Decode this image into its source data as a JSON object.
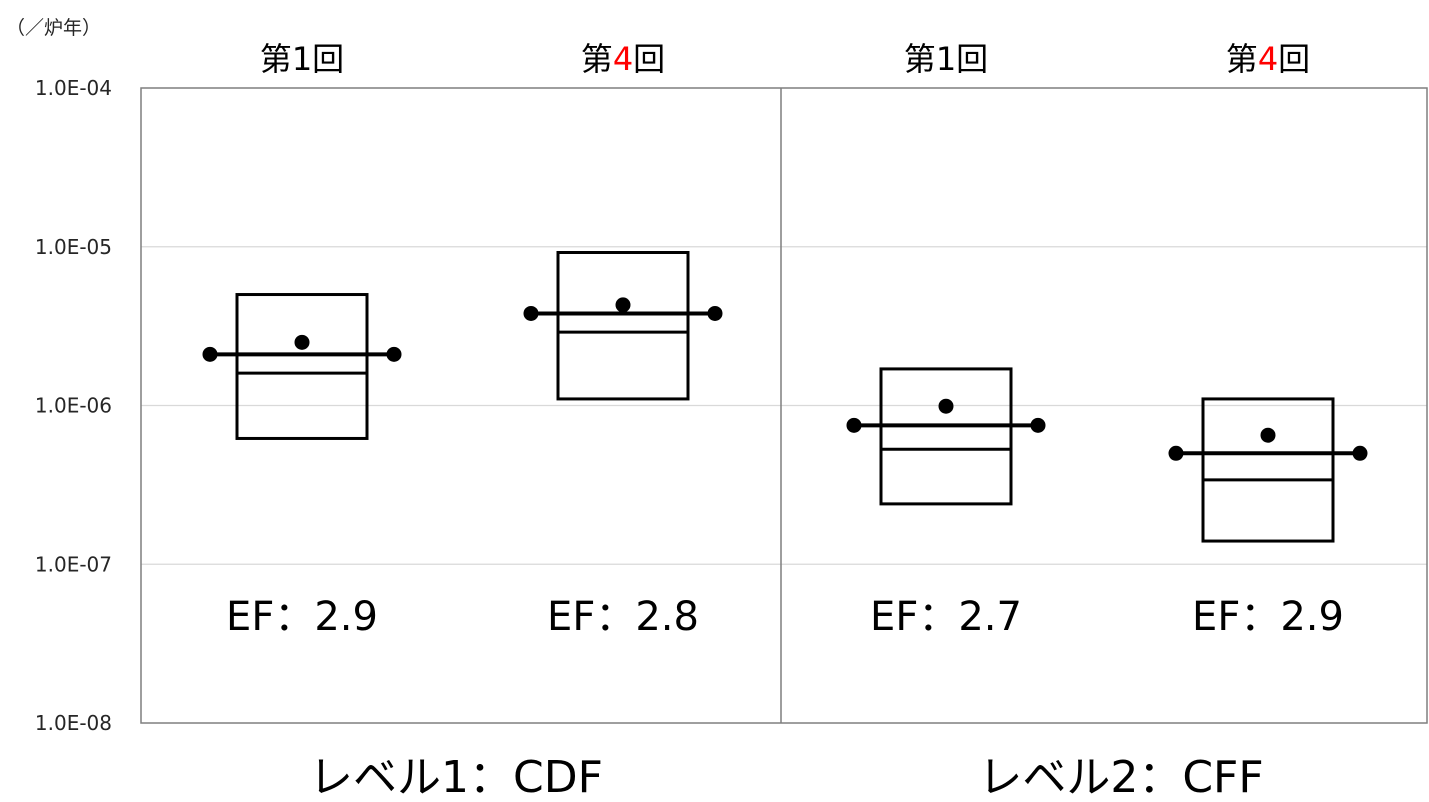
{
  "chart_data": {
    "type": "box",
    "y_unit_label": "（／炉年）",
    "y_scale": "log",
    "ylim": [
      1e-08,
      0.0001
    ],
    "y_ticks": [
      "1.0E-04",
      "1.0E-05",
      "1.0E-06",
      "1.0E-07",
      "1.0E-08"
    ],
    "grid": true,
    "groups": [
      {
        "label": "レベル1：CDF",
        "items": [
          {
            "round_prefix": "第",
            "round_number": "1",
            "round_suffix": "回",
            "highlight": false,
            "p95": 5e-06,
            "mean": 2.5e-06,
            "point_estimate": 2.1e-06,
            "median": 1.6e-06,
            "p05": 6.2e-07,
            "ef_label": "EF：2.9"
          },
          {
            "round_prefix": "第",
            "round_number": "4",
            "round_suffix": "回",
            "highlight": true,
            "p95": 9.2e-06,
            "mean": 4.3e-06,
            "point_estimate": 3.8e-06,
            "median": 2.9e-06,
            "p05": 1.1e-06,
            "ef_label": "EF：2.8"
          }
        ]
      },
      {
        "label": "レベル2：CFF",
        "items": [
          {
            "round_prefix": "第",
            "round_number": "1",
            "round_suffix": "回",
            "highlight": false,
            "p95": 1.7e-06,
            "mean": 9.9e-07,
            "point_estimate": 7.5e-07,
            "median": 5.3e-07,
            "p05": 2.4e-07,
            "ef_label": "EF：2.7"
          },
          {
            "round_prefix": "第",
            "round_number": "4",
            "round_suffix": "回",
            "highlight": true,
            "p95": 1.1e-06,
            "mean": 6.5e-07,
            "point_estimate": 5e-07,
            "median": 3.4e-07,
            "p05": 1.4e-07,
            "ef_label": "EF：2.9"
          }
        ]
      }
    ],
    "colors": {
      "highlight": "#ff0000",
      "grid": "#d9d9d9",
      "axis": "#7f7f7f",
      "mark": "#000000"
    }
  }
}
